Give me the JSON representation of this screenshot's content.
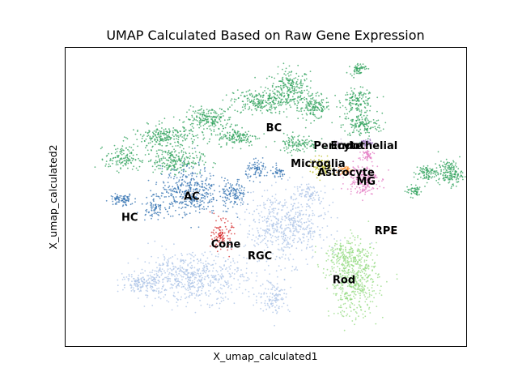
{
  "chart_data": {
    "type": "scatter",
    "title": "UMAP Calculated Based on Raw Gene Expression",
    "xlabel": "X_umap_calculated1",
    "ylabel": "X_umap_calculated2",
    "xlim": [
      0,
      100
    ],
    "ylim": [
      0,
      100
    ],
    "grid": false,
    "legend": "none",
    "ticks": "none",
    "series": [
      {
        "name": "BC",
        "color": "#2ca05a",
        "label_at": [
          52,
          73
        ],
        "blobs": [
          {
            "cx": 56,
            "cy": 86,
            "rx": 5,
            "ry": 7,
            "n": 260
          },
          {
            "cx": 62,
            "cy": 80,
            "rx": 4,
            "ry": 4,
            "n": 140
          },
          {
            "cx": 73,
            "cy": 82,
            "rx": 4,
            "ry": 4,
            "n": 140
          },
          {
            "cx": 74,
            "cy": 74,
            "rx": 5,
            "ry": 4,
            "n": 140
          },
          {
            "cx": 48,
            "cy": 82,
            "rx": 6,
            "ry": 4,
            "n": 200
          },
          {
            "cx": 36,
            "cy": 76,
            "rx": 6,
            "ry": 4,
            "n": 200
          },
          {
            "cx": 25,
            "cy": 70,
            "rx": 8,
            "ry": 4,
            "n": 240
          },
          {
            "cx": 27,
            "cy": 62,
            "rx": 7,
            "ry": 4,
            "n": 220
          },
          {
            "cx": 14,
            "cy": 63,
            "rx": 4,
            "ry": 4,
            "n": 120
          },
          {
            "cx": 43,
            "cy": 70,
            "rx": 5,
            "ry": 3,
            "n": 140
          },
          {
            "cx": 58,
            "cy": 68,
            "rx": 5,
            "ry": 3,
            "n": 120
          },
          {
            "cx": 73,
            "cy": 93,
            "rx": 2,
            "ry": 2,
            "n": 60
          },
          {
            "cx": 96,
            "cy": 58,
            "rx": 3,
            "ry": 4,
            "n": 160
          },
          {
            "cx": 90,
            "cy": 58,
            "rx": 3,
            "ry": 3,
            "n": 90
          },
          {
            "cx": 87,
            "cy": 52,
            "rx": 2,
            "ry": 2,
            "n": 50
          }
        ]
      },
      {
        "name": "AC",
        "color": "#2f6faf",
        "label_at": [
          31.5,
          50
        ],
        "blobs": [
          {
            "cx": 31,
            "cy": 52,
            "rx": 7,
            "ry": 8,
            "n": 380
          },
          {
            "cx": 42,
            "cy": 51,
            "rx": 3,
            "ry": 5,
            "n": 120
          },
          {
            "cx": 48,
            "cy": 59,
            "rx": 3,
            "ry": 3,
            "n": 80
          },
          {
            "cx": 53,
            "cy": 58,
            "rx": 2,
            "ry": 2,
            "n": 40
          }
        ]
      },
      {
        "name": "HC",
        "color": "#2f6faf",
        "label_at": [
          16,
          43
        ],
        "blobs": [
          {
            "cx": 14,
            "cy": 49,
            "rx": 3,
            "ry": 2,
            "n": 80
          },
          {
            "cx": 22,
            "cy": 47,
            "rx": 3,
            "ry": 4,
            "n": 80
          }
        ]
      },
      {
        "name": "RGC",
        "color": "#a9c2e6",
        "label_at": [
          48.5,
          30
        ],
        "blobs": [
          {
            "cx": 55,
            "cy": 40,
            "rx": 10,
            "ry": 12,
            "n": 560
          },
          {
            "cx": 31,
            "cy": 23,
            "rx": 14,
            "ry": 8,
            "n": 620
          },
          {
            "cx": 19,
            "cy": 21,
            "rx": 5,
            "ry": 3,
            "n": 120
          },
          {
            "cx": 52,
            "cy": 17,
            "rx": 4,
            "ry": 6,
            "n": 120
          },
          {
            "cx": 61,
            "cy": 51,
            "rx": 3,
            "ry": 3,
            "n": 60
          }
        ]
      },
      {
        "name": "Rod",
        "color": "#92d97d",
        "label_at": [
          69.5,
          22
        ],
        "blobs": [
          {
            "cx": 72,
            "cy": 22,
            "rx": 6,
            "ry": 12,
            "n": 520
          },
          {
            "cx": 70,
            "cy": 31,
            "rx": 5,
            "ry": 4,
            "n": 120
          }
        ]
      },
      {
        "name": "Microglia",
        "color": "#bcbd22",
        "label_at": [
          63,
          61
        ],
        "blobs": [
          {
            "cx": 64,
            "cy": 60,
            "rx": 3,
            "ry": 3,
            "n": 90
          }
        ]
      },
      {
        "name": "Astrocyte",
        "color": "#ff7f0e",
        "label_at": [
          70,
          58
        ],
        "blobs": [
          {
            "cx": 70,
            "cy": 59,
            "rx": 1.5,
            "ry": 1.5,
            "n": 40
          }
        ]
      },
      {
        "name": "MG",
        "color": "#e377c2",
        "label_at": [
          75,
          55
        ],
        "blobs": [
          {
            "cx": 74,
            "cy": 56,
            "rx": 4,
            "ry": 5,
            "n": 200
          },
          {
            "cx": 75,
            "cy": 64,
            "rx": 2,
            "ry": 2,
            "n": 50
          }
        ]
      },
      {
        "name": "Endothelial",
        "color": "#9467bd",
        "label_at": [
          74.5,
          67
        ],
        "blobs": [
          {
            "cx": 75,
            "cy": 68,
            "rx": 1.5,
            "ry": 1.5,
            "n": 30
          }
        ]
      },
      {
        "name": "Pericyte",
        "color": "#c5b0d5",
        "label_at": [
          68,
          67
        ],
        "blobs": [
          {
            "cx": 68,
            "cy": 68,
            "rx": 1.5,
            "ry": 1.5,
            "n": 25
          }
        ]
      },
      {
        "name": "Cone",
        "color": "#d62728",
        "label_at": [
          40,
          34
        ],
        "blobs": [
          {
            "cx": 39,
            "cy": 37,
            "rx": 2.5,
            "ry": 5,
            "n": 110
          }
        ]
      },
      {
        "name": "RPE",
        "color": "#c49c94",
        "label_at": [
          80,
          38.5
        ],
        "blobs": [
          {
            "cx": 81.5,
            "cy": 38,
            "rx": 0.6,
            "ry": 0.6,
            "n": 6
          }
        ]
      }
    ]
  }
}
